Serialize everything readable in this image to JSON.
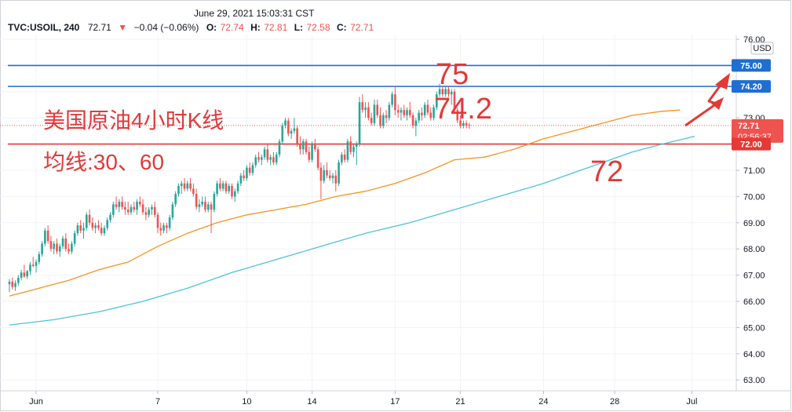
{
  "header": {
    "datetime": "June 29, 2021 15:03:31 CST",
    "symbol": "TVC:USOIL, 240",
    "last": "72.71",
    "change": "−0.04 (−0.06%)",
    "o_label": "O:",
    "o_value": "72.74",
    "h_label": "H:",
    "h_value": "72.81",
    "l_label": "L:",
    "l_value": "72.58",
    "c_label": "C:",
    "c_value": "72.71"
  },
  "price_scale": {
    "currency": "USD",
    "ticks": [
      "76.00",
      "75.00",
      "74.00",
      "73.00",
      "72.00",
      "71.00",
      "70.00",
      "69.00",
      "68.00",
      "67.00",
      "66.00",
      "65.00",
      "64.00",
      "63.00"
    ]
  },
  "time_scale": {
    "ticks": [
      "Jun",
      "7",
      "10",
      "14",
      "17",
      "21",
      "24",
      "28",
      "Jul"
    ]
  },
  "price_labels": {
    "line_75": "75.00",
    "line_742": "74.20",
    "last_price": "72.71",
    "countdown": "02:56:37",
    "line_72": "72.00"
  },
  "annotations": {
    "title": "美国原油4小时K线",
    "ma_note": "均线:30、60",
    "lvl_75": "75",
    "lvl_742": "74.2",
    "lvl_72": "72"
  },
  "colors": {
    "up": "#26a69a",
    "down": "#ef5350",
    "ma30": "#f7931e",
    "ma60": "#4fc3d9",
    "hline_blue": "#1e6fd0",
    "hline_red": "#e53935",
    "annotation": "#e03a3a"
  },
  "chart_data": {
    "type": "candlestick",
    "symbol": "TVC:USOIL",
    "interval": "240",
    "currency": "USD",
    "ylim": [
      62.8,
      76.2
    ],
    "x_ticks": [
      {
        "label": "Jun",
        "index": 9
      },
      {
        "label": "7",
        "index": 50
      },
      {
        "label": "10",
        "index": 80
      },
      {
        "label": "14",
        "index": 102
      },
      {
        "label": "17",
        "index": 130
      },
      {
        "label": "21",
        "index": 152
      },
      {
        "label": "24",
        "index": 180
      },
      {
        "label": "28",
        "index": 204
      },
      {
        "label": "Jul",
        "index": 230
      }
    ],
    "ohlc": [
      [
        66.65,
        66.85,
        66.35,
        66.75
      ],
      [
        66.75,
        66.9,
        66.45,
        66.55
      ],
      [
        66.55,
        66.8,
        66.4,
        66.7
      ],
      [
        66.7,
        67.0,
        66.6,
        66.9
      ],
      [
        66.9,
        67.2,
        66.8,
        67.1
      ],
      [
        67.1,
        67.4,
        66.9,
        66.95
      ],
      [
        66.95,
        67.2,
        66.85,
        67.15
      ],
      [
        67.15,
        67.5,
        67.0,
        67.4
      ],
      [
        67.4,
        67.7,
        67.3,
        67.35
      ],
      [
        67.35,
        67.6,
        67.1,
        67.5
      ],
      [
        67.5,
        67.9,
        67.4,
        67.8
      ],
      [
        67.8,
        68.3,
        67.7,
        68.2
      ],
      [
        68.2,
        68.8,
        68.1,
        68.7
      ],
      [
        68.7,
        68.9,
        68.2,
        68.3
      ],
      [
        68.3,
        68.5,
        67.9,
        68.0
      ],
      [
        68.0,
        68.3,
        67.8,
        68.2
      ],
      [
        68.2,
        68.4,
        67.8,
        67.9
      ],
      [
        67.9,
        68.2,
        67.7,
        68.1
      ],
      [
        68.1,
        68.5,
        68.0,
        68.4
      ],
      [
        68.4,
        68.6,
        67.9,
        68.0
      ],
      [
        68.0,
        68.2,
        67.8,
        67.9
      ],
      [
        67.9,
        68.3,
        67.8,
        68.2
      ],
      [
        68.2,
        68.7,
        68.1,
        68.6
      ],
      [
        68.6,
        69.0,
        68.5,
        68.9
      ],
      [
        68.9,
        69.1,
        68.6,
        68.7
      ],
      [
        68.7,
        69.0,
        68.4,
        68.8
      ],
      [
        68.8,
        69.4,
        68.7,
        69.3
      ],
      [
        69.3,
        69.5,
        68.9,
        69.0
      ],
      [
        69.0,
        69.2,
        68.7,
        68.8
      ],
      [
        68.8,
        69.0,
        68.6,
        68.9
      ],
      [
        68.9,
        69.1,
        68.7,
        68.8
      ],
      [
        68.8,
        69.0,
        68.5,
        68.6
      ],
      [
        68.6,
        68.9,
        68.5,
        68.8
      ],
      [
        68.8,
        69.2,
        68.7,
        69.1
      ],
      [
        69.1,
        69.4,
        69.0,
        69.3
      ],
      [
        69.3,
        69.8,
        69.2,
        69.7
      ],
      [
        69.7,
        70.0,
        69.5,
        69.6
      ],
      [
        69.6,
        69.9,
        69.4,
        69.8
      ],
      [
        69.8,
        70.0,
        69.5,
        69.6
      ],
      [
        69.6,
        69.8,
        69.3,
        69.5
      ],
      [
        69.5,
        69.8,
        69.3,
        69.4
      ],
      [
        69.4,
        69.7,
        69.3,
        69.6
      ],
      [
        69.6,
        69.8,
        69.4,
        69.5
      ],
      [
        69.5,
        69.9,
        69.3,
        69.8
      ],
      [
        69.8,
        70.0,
        69.6,
        69.7
      ],
      [
        69.7,
        69.9,
        69.3,
        69.4
      ],
      [
        69.4,
        69.6,
        69.1,
        69.3
      ],
      [
        69.3,
        69.6,
        69.2,
        69.5
      ],
      [
        69.5,
        69.7,
        69.3,
        69.6
      ],
      [
        69.6,
        69.8,
        69.2,
        69.3
      ],
      [
        69.3,
        69.4,
        68.6,
        68.8
      ],
      [
        68.8,
        69.0,
        68.5,
        68.7
      ],
      [
        68.7,
        69.0,
        68.6,
        68.9
      ],
      [
        68.9,
        69.0,
        68.6,
        68.8
      ],
      [
        68.8,
        69.3,
        68.7,
        69.2
      ],
      [
        69.2,
        69.8,
        69.1,
        69.7
      ],
      [
        69.7,
        70.2,
        69.6,
        70.1
      ],
      [
        70.1,
        70.5,
        70.0,
        70.4
      ],
      [
        70.4,
        70.6,
        70.1,
        70.5
      ],
      [
        70.5,
        70.7,
        70.2,
        70.3
      ],
      [
        70.3,
        70.6,
        70.2,
        70.5
      ],
      [
        70.5,
        70.7,
        70.2,
        70.3
      ],
      [
        70.3,
        70.5,
        70.0,
        70.1
      ],
      [
        70.1,
        70.3,
        69.5,
        69.6
      ],
      [
        69.6,
        69.9,
        69.4,
        69.7
      ],
      [
        69.7,
        70.0,
        69.6,
        69.8
      ],
      [
        69.8,
        70.0,
        69.4,
        69.5
      ],
      [
        69.5,
        69.8,
        69.4,
        69.7
      ],
      [
        69.7,
        69.8,
        68.6,
        69.5
      ],
      [
        69.5,
        70.2,
        69.4,
        70.1
      ],
      [
        70.1,
        70.6,
        70.0,
        70.5
      ],
      [
        70.5,
        70.7,
        70.2,
        70.3
      ],
      [
        70.3,
        70.6,
        70.2,
        70.5
      ],
      [
        70.5,
        70.6,
        70.1,
        70.2
      ],
      [
        70.2,
        70.5,
        70.1,
        70.4
      ],
      [
        70.4,
        70.5,
        69.9,
        70.0
      ],
      [
        70.0,
        70.3,
        69.8,
        70.2
      ],
      [
        70.2,
        70.6,
        70.1,
        70.5
      ],
      [
        70.5,
        70.9,
        70.4,
        70.8
      ],
      [
        70.8,
        71.0,
        70.6,
        70.7
      ],
      [
        70.7,
        71.2,
        70.6,
        71.1
      ],
      [
        71.1,
        71.3,
        70.8,
        70.9
      ],
      [
        70.9,
        71.3,
        70.8,
        71.2
      ],
      [
        71.2,
        71.6,
        71.1,
        71.5
      ],
      [
        71.5,
        71.7,
        71.3,
        71.4
      ],
      [
        71.4,
        71.6,
        71.2,
        71.5
      ],
      [
        71.5,
        71.9,
        71.4,
        71.8
      ],
      [
        71.8,
        72.0,
        71.3,
        71.4
      ],
      [
        71.4,
        71.6,
        71.2,
        71.5
      ],
      [
        71.5,
        71.7,
        71.2,
        71.3
      ],
      [
        71.3,
        71.7,
        71.2,
        71.6
      ],
      [
        71.6,
        72.2,
        71.5,
        72.1
      ],
      [
        72.1,
        72.8,
        72.0,
        72.7
      ],
      [
        72.7,
        73.0,
        72.6,
        72.9
      ],
      [
        72.9,
        73.0,
        72.3,
        72.4
      ],
      [
        72.4,
        72.6,
        72.2,
        72.5
      ],
      [
        72.5,
        73.0,
        72.4,
        72.6
      ],
      [
        72.6,
        72.7,
        71.9,
        72.0
      ],
      [
        72.0,
        72.3,
        71.6,
        71.8
      ],
      [
        71.8,
        72.2,
        71.6,
        72.1
      ],
      [
        72.1,
        72.2,
        71.6,
        71.7
      ],
      [
        71.7,
        71.9,
        71.3,
        71.4
      ],
      [
        71.4,
        72.1,
        71.3,
        72.0
      ],
      [
        72.0,
        72.2,
        71.7,
        71.8
      ],
      [
        71.8,
        71.9,
        71.0,
        71.1
      ],
      [
        71.1,
        71.3,
        69.9,
        70.6
      ],
      [
        70.6,
        71.2,
        70.5,
        71.0
      ],
      [
        71.0,
        71.3,
        70.7,
        70.8
      ],
      [
        70.8,
        71.0,
        70.6,
        70.7
      ],
      [
        70.7,
        70.9,
        70.5,
        70.8
      ],
      [
        70.8,
        71.0,
        70.2,
        70.5
      ],
      [
        70.5,
        71.4,
        70.4,
        71.3
      ],
      [
        71.3,
        71.7,
        71.2,
        71.6
      ],
      [
        71.6,
        71.8,
        71.3,
        71.4
      ],
      [
        71.4,
        72.2,
        71.3,
        72.1
      ],
      [
        72.1,
        72.3,
        71.6,
        71.7
      ],
      [
        71.7,
        72.0,
        71.5,
        71.9
      ],
      [
        71.9,
        72.1,
        71.2,
        72.0
      ],
      [
        72.0,
        73.8,
        71.9,
        73.6
      ],
      [
        73.6,
        73.9,
        73.2,
        73.3
      ],
      [
        73.3,
        73.6,
        73.0,
        73.4
      ],
      [
        73.4,
        73.6,
        72.9,
        73.0
      ],
      [
        73.0,
        73.2,
        72.7,
        72.8
      ],
      [
        72.8,
        73.7,
        72.7,
        73.5
      ],
      [
        73.5,
        73.7,
        73.0,
        73.1
      ],
      [
        73.1,
        73.4,
        72.6,
        72.7
      ],
      [
        72.7,
        73.2,
        72.6,
        73.1
      ],
      [
        73.1,
        73.3,
        72.8,
        73.0
      ],
      [
        73.0,
        73.6,
        72.9,
        73.5
      ],
      [
        73.5,
        74.0,
        73.4,
        73.9
      ],
      [
        73.9,
        74.2,
        73.1,
        73.3
      ],
      [
        73.3,
        73.5,
        73.0,
        73.2
      ],
      [
        73.2,
        73.4,
        72.9,
        73.3
      ],
      [
        73.3,
        73.5,
        73.0,
        73.1
      ],
      [
        73.1,
        73.4,
        72.9,
        73.3
      ],
      [
        73.3,
        73.6,
        73.0,
        73.1
      ],
      [
        73.1,
        73.2,
        72.6,
        72.7
      ],
      [
        72.7,
        73.0,
        72.3,
        72.9
      ],
      [
        72.9,
        73.3,
        72.8,
        73.2
      ],
      [
        73.2,
        73.4,
        72.9,
        73.1
      ],
      [
        73.1,
        73.6,
        73.0,
        73.5
      ],
      [
        73.5,
        73.7,
        73.1,
        73.2
      ],
      [
        73.2,
        73.4,
        72.9,
        73.0
      ],
      [
        73.0,
        73.5,
        72.9,
        73.4
      ],
      [
        73.4,
        74.0,
        73.3,
        73.9
      ],
      [
        73.9,
        74.3,
        73.8,
        74.1
      ],
      [
        74.1,
        74.2,
        73.8,
        73.9
      ],
      [
        73.9,
        74.2,
        73.8,
        74.1
      ],
      [
        74.1,
        74.2,
        73.8,
        73.9
      ],
      [
        73.9,
        74.1,
        73.5,
        74.0
      ],
      [
        74.0,
        74.1,
        73.2,
        73.3
      ],
      [
        73.3,
        73.4,
        72.8,
        72.9
      ],
      [
        72.9,
        73.1,
        72.6,
        72.7
      ],
      [
        72.7,
        72.9,
        72.6,
        72.8
      ],
      [
        72.8,
        72.9,
        72.6,
        72.7
      ],
      [
        72.74,
        72.81,
        72.58,
        72.71
      ]
    ],
    "ma30": [
      [
        0,
        66.2
      ],
      [
        10,
        66.5
      ],
      [
        20,
        66.8
      ],
      [
        30,
        67.2
      ],
      [
        40,
        67.5
      ],
      [
        50,
        68.1
      ],
      [
        60,
        68.6
      ],
      [
        70,
        69.0
      ],
      [
        80,
        69.3
      ],
      [
        90,
        69.5
      ],
      [
        100,
        69.7
      ],
      [
        110,
        70.0
      ],
      [
        120,
        70.2
      ],
      [
        130,
        70.5
      ],
      [
        140,
        70.9
      ],
      [
        150,
        71.4
      ],
      [
        160,
        71.5
      ],
      [
        170,
        71.8
      ],
      [
        180,
        72.2
      ],
      [
        190,
        72.5
      ],
      [
        200,
        72.8
      ],
      [
        210,
        73.1
      ],
      [
        220,
        73.25
      ],
      [
        226,
        73.3
      ]
    ],
    "ma60": [
      [
        0,
        65.1
      ],
      [
        15,
        65.3
      ],
      [
        30,
        65.6
      ],
      [
        45,
        66.0
      ],
      [
        60,
        66.5
      ],
      [
        75,
        67.1
      ],
      [
        90,
        67.6
      ],
      [
        105,
        68.1
      ],
      [
        120,
        68.6
      ],
      [
        135,
        69.0
      ],
      [
        150,
        69.5
      ],
      [
        165,
        70.0
      ],
      [
        180,
        70.5
      ],
      [
        190,
        70.9
      ],
      [
        200,
        71.3
      ],
      [
        210,
        71.7
      ],
      [
        220,
        72.0
      ],
      [
        231,
        72.3
      ]
    ],
    "hlines": [
      {
        "value": 75.0,
        "color": "blue"
      },
      {
        "value": 74.2,
        "color": "blue"
      },
      {
        "value": 72.0,
        "color": "red"
      }
    ],
    "last_price": 72.71
  }
}
